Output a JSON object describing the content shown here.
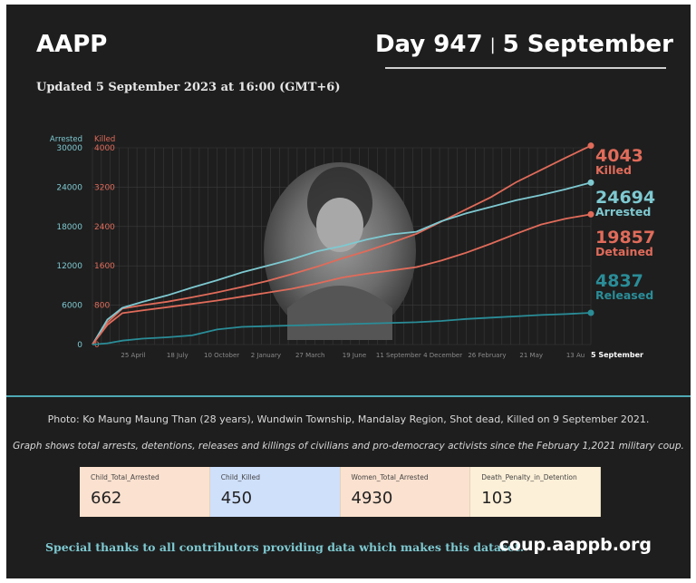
{
  "header": {
    "brand": "AAPP",
    "day": "Day 947",
    "separator": "|",
    "date": "5 September",
    "updated": "Updated 5 September 2023 at 16:00 (GMT+6)"
  },
  "chart_data": {
    "type": "line",
    "left_axis": {
      "label": "Arrested",
      "ticks": [
        0,
        6000,
        12000,
        18000,
        24000,
        30000
      ],
      "ylim": [
        0,
        30000
      ]
    },
    "right_axis": {
      "label": "Killed",
      "ticks": [
        0,
        800,
        1600,
        2400,
        3200,
        4000
      ],
      "ylim": [
        0,
        4000
      ]
    },
    "x_ticks": [
      "25 April",
      "18 July",
      "10 October",
      "2 January",
      "27 March",
      "19 June",
      "11 September",
      "4 December",
      "26 February",
      "21 May",
      "13 Au",
      "5 September"
    ],
    "x": [
      0,
      0.03,
      0.06,
      0.1,
      0.15,
      0.2,
      0.25,
      0.3,
      0.35,
      0.4,
      0.45,
      0.5,
      0.55,
      0.6,
      0.65,
      0.7,
      0.75,
      0.8,
      0.85,
      0.9,
      0.95,
      1.0
    ],
    "series": [
      {
        "name": "Killed",
        "axis": "right",
        "color": "#e06b5a",
        "values": [
          0,
          450,
          730,
          800,
          870,
          960,
          1060,
          1170,
          1290,
          1430,
          1580,
          1750,
          1900,
          2070,
          2250,
          2500,
          2750,
          3000,
          3300,
          3550,
          3800,
          4043
        ]
      },
      {
        "name": "Arrested",
        "axis": "left",
        "color": "#7ec9d1",
        "values": [
          0,
          3800,
          5600,
          6500,
          7500,
          8700,
          9800,
          11000,
          12000,
          13000,
          14200,
          15000,
          16000,
          16800,
          17200,
          18800,
          20000,
          21000,
          22000,
          22800,
          23700,
          24694
        ]
      },
      {
        "name": "Detained",
        "axis": "left",
        "color": "#e06b5a",
        "values": [
          0,
          3000,
          4800,
          5200,
          5700,
          6200,
          6700,
          7300,
          7900,
          8500,
          9300,
          10200,
          10800,
          11300,
          11800,
          12800,
          14000,
          15400,
          16900,
          18300,
          19200,
          19857
        ]
      },
      {
        "name": "Released",
        "axis": "left",
        "color": "#2a8d98",
        "values": [
          0,
          200,
          600,
          900,
          1100,
          1400,
          2300,
          2700,
          2800,
          2900,
          3000,
          3100,
          3200,
          3300,
          3400,
          3600,
          3900,
          4100,
          4300,
          4500,
          4650,
          4837
        ]
      }
    ],
    "end_labels": [
      {
        "value": "4043",
        "label": "Killed",
        "color": "#e06b5a"
      },
      {
        "value": "24694",
        "label": "Arrested",
        "color": "#7ec9d1"
      },
      {
        "value": "19857",
        "label": "Detained",
        "color": "#e06b5a"
      },
      {
        "value": "4837",
        "label": "Released",
        "color": "#2a8d98"
      }
    ]
  },
  "captions": {
    "photo": "Photo: Ko Maung Maung Than (28 years), Wundwin Township, Mandalay Region, Shot dead, Killed on 9 September 2021.",
    "graph": "Graph shows total arrests, detentions, releases and killings of civilians and pro-democracy activists since the February 1,2021 military coup."
  },
  "stats": [
    {
      "label": "Child_Total_Arrested",
      "value": "662",
      "color": "#fbe1cf"
    },
    {
      "label": "Child_Killed",
      "value": "450",
      "color": "#cfe0fb"
    },
    {
      "label": "Women_Total_Arrested",
      "value": "4930",
      "color": "#fbe1cf"
    },
    {
      "label": "Death_Penalty_in_Detention",
      "value": "103",
      "color": "#fdf0d8"
    }
  ],
  "footer": {
    "thanks": "Special thanks to all contributors providing data which makes this dataset.",
    "site": "coup.aappb.org"
  }
}
